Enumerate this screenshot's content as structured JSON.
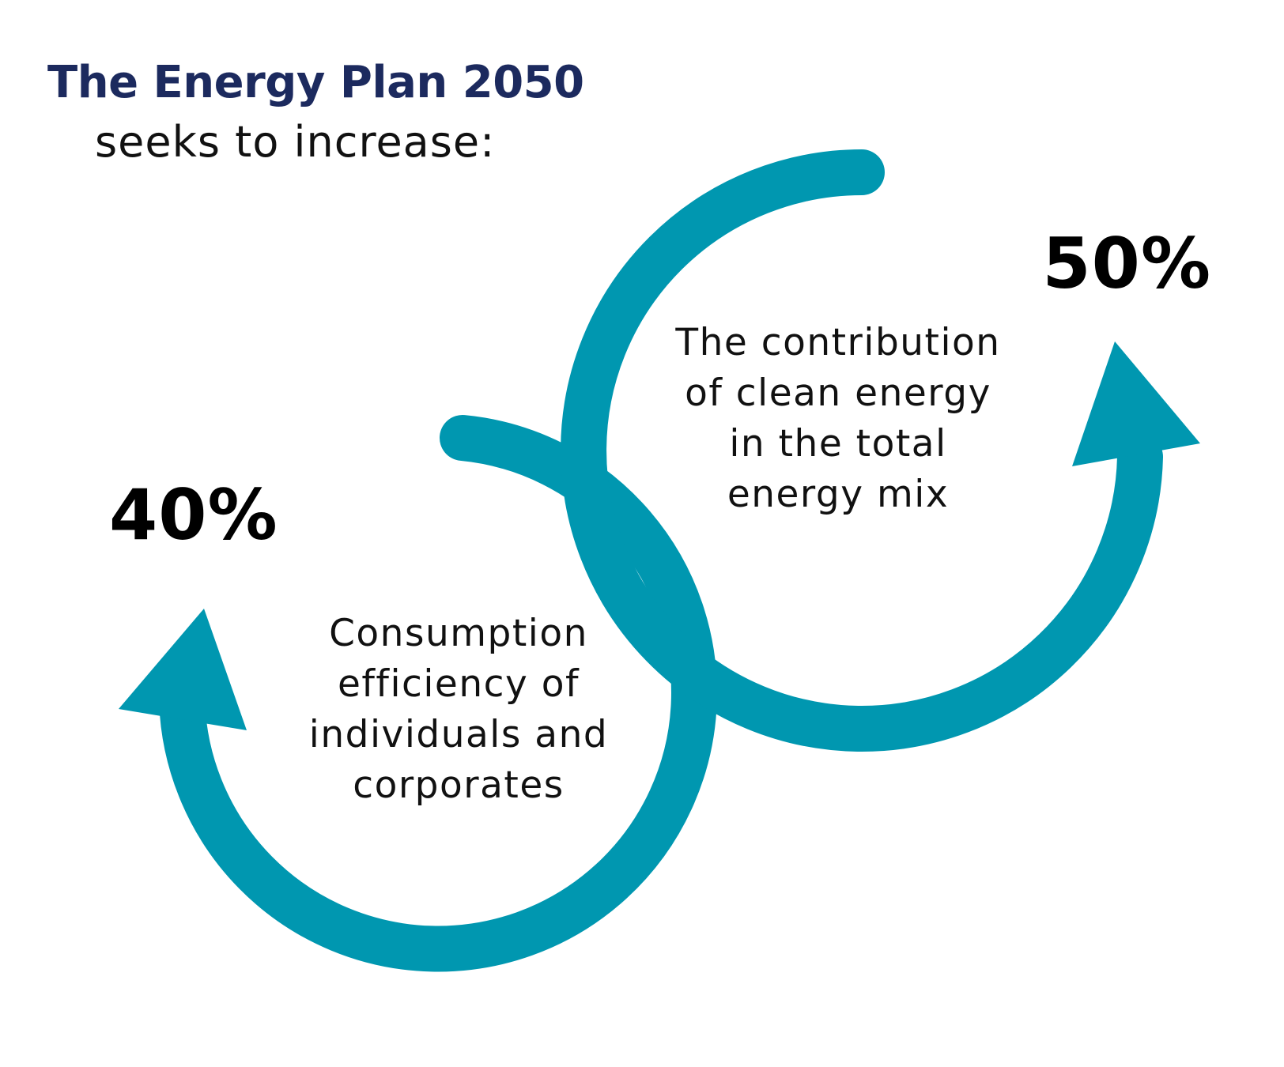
{
  "heading": {
    "title": "The Energy Plan 2050",
    "subtitle": "seeks to increase:"
  },
  "targets": [
    {
      "value": "50%",
      "description_lines": [
        "The contribution",
        "of clean energy",
        "in the total",
        "energy mix"
      ]
    },
    {
      "value": "40%",
      "description_lines": [
        "Consumption",
        "efficiency of",
        "individuals and",
        "corporates"
      ]
    }
  ],
  "colors": {
    "title": "#1c2a5e",
    "arrow": "#0097b0",
    "text": "#111111",
    "value": "#000000"
  },
  "icons": {
    "arrow_upper": "curved-arrow-up-right-icon",
    "arrow_lower": "curved-arrow-up-left-icon"
  }
}
